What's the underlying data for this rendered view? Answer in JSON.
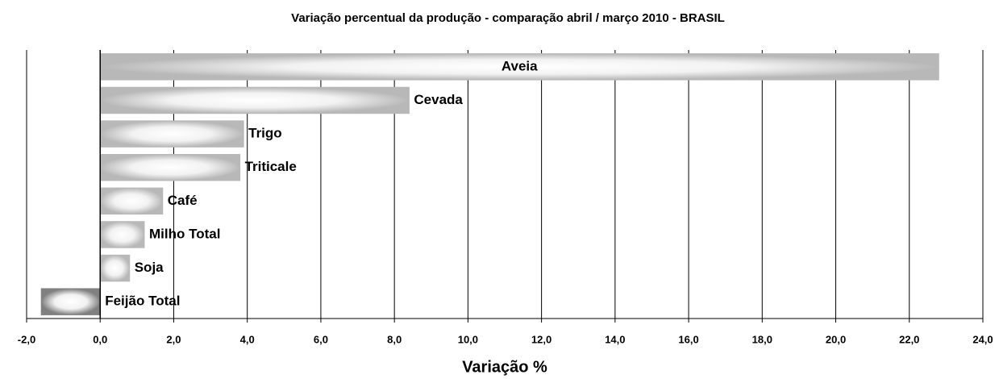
{
  "chart_data": {
    "type": "bar",
    "orientation": "horizontal",
    "title": "Variação percentual da produção - comparação abril / março 2010 - BRASIL",
    "xlabel": "Variação %",
    "categories": [
      "Aveia",
      "Cevada",
      "Trigo",
      "Triticale",
      "Café",
      "Milho Total",
      "Soja",
      "Feijão Total"
    ],
    "values": [
      22.8,
      8.4,
      3.9,
      3.8,
      1.7,
      1.2,
      0.8,
      -1.6
    ],
    "colors": [
      "#b8b8b8",
      "#b8b8b8",
      "#b8b8b8",
      "#b8b8b8",
      "#b8b8b8",
      "#b8b8b8",
      "#b8b8b8",
      "#808080"
    ],
    "xlim": [
      -2,
      24
    ],
    "xticks": [
      {
        "value": -2,
        "label": "-2,0"
      },
      {
        "value": 0,
        "label": "0,0"
      },
      {
        "value": 2,
        "label": "2,0"
      },
      {
        "value": 4,
        "label": "4,0"
      },
      {
        "value": 6,
        "label": "6,0"
      },
      {
        "value": 8,
        "label": "8,0"
      },
      {
        "value": 10,
        "label": "10,0"
      },
      {
        "value": 12,
        "label": "12,0"
      },
      {
        "value": 14,
        "label": "14,0"
      },
      {
        "value": 16,
        "label": "16,0"
      },
      {
        "value": 18,
        "label": "18,0"
      },
      {
        "value": 20,
        "label": "20,0"
      },
      {
        "value": 22,
        "label": "22,0"
      },
      {
        "value": 24,
        "label": "24,0"
      }
    ],
    "grid": true
  }
}
